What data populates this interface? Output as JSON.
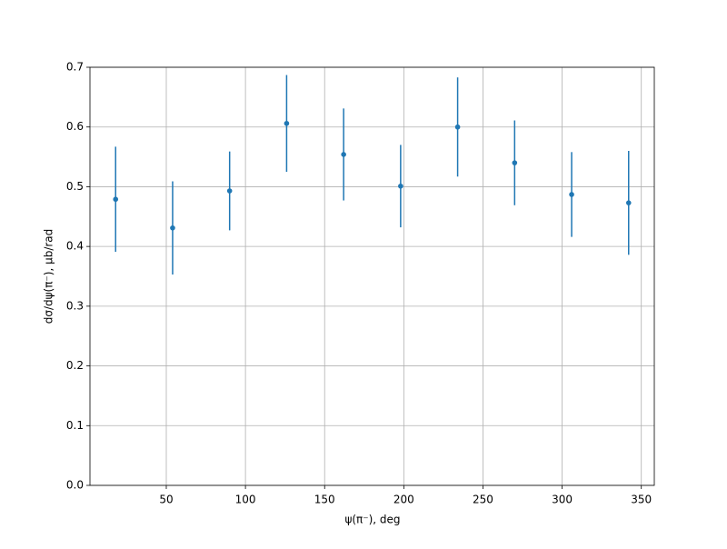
{
  "chart_data": {
    "type": "errorbar",
    "xlabel": "ψ(π⁻), deg",
    "ylabel": "dσ/dψ(π⁻), μb/rad",
    "x": [
      18,
      54,
      90,
      126,
      162,
      198,
      234,
      270,
      306,
      342
    ],
    "values": [
      0.479,
      0.431,
      0.493,
      0.606,
      0.554,
      0.501,
      0.6,
      0.54,
      0.487,
      0.473
    ],
    "errors": [
      0.088,
      0.078,
      0.066,
      0.081,
      0.077,
      0.069,
      0.083,
      0.071,
      0.071,
      0.087
    ],
    "color": "#1f77b4",
    "xlim": [
      1.8,
      358.2
    ],
    "xticks": [
      50,
      100,
      150,
      200,
      250,
      300,
      350
    ],
    "ylim": [
      0,
      0.7
    ],
    "yticks": [
      {
        "value": 0,
        "label": "0.0"
      },
      0.1,
      0.2,
      0.3,
      0.4,
      0.5,
      0.6,
      0.7
    ],
    "grid": true
  }
}
